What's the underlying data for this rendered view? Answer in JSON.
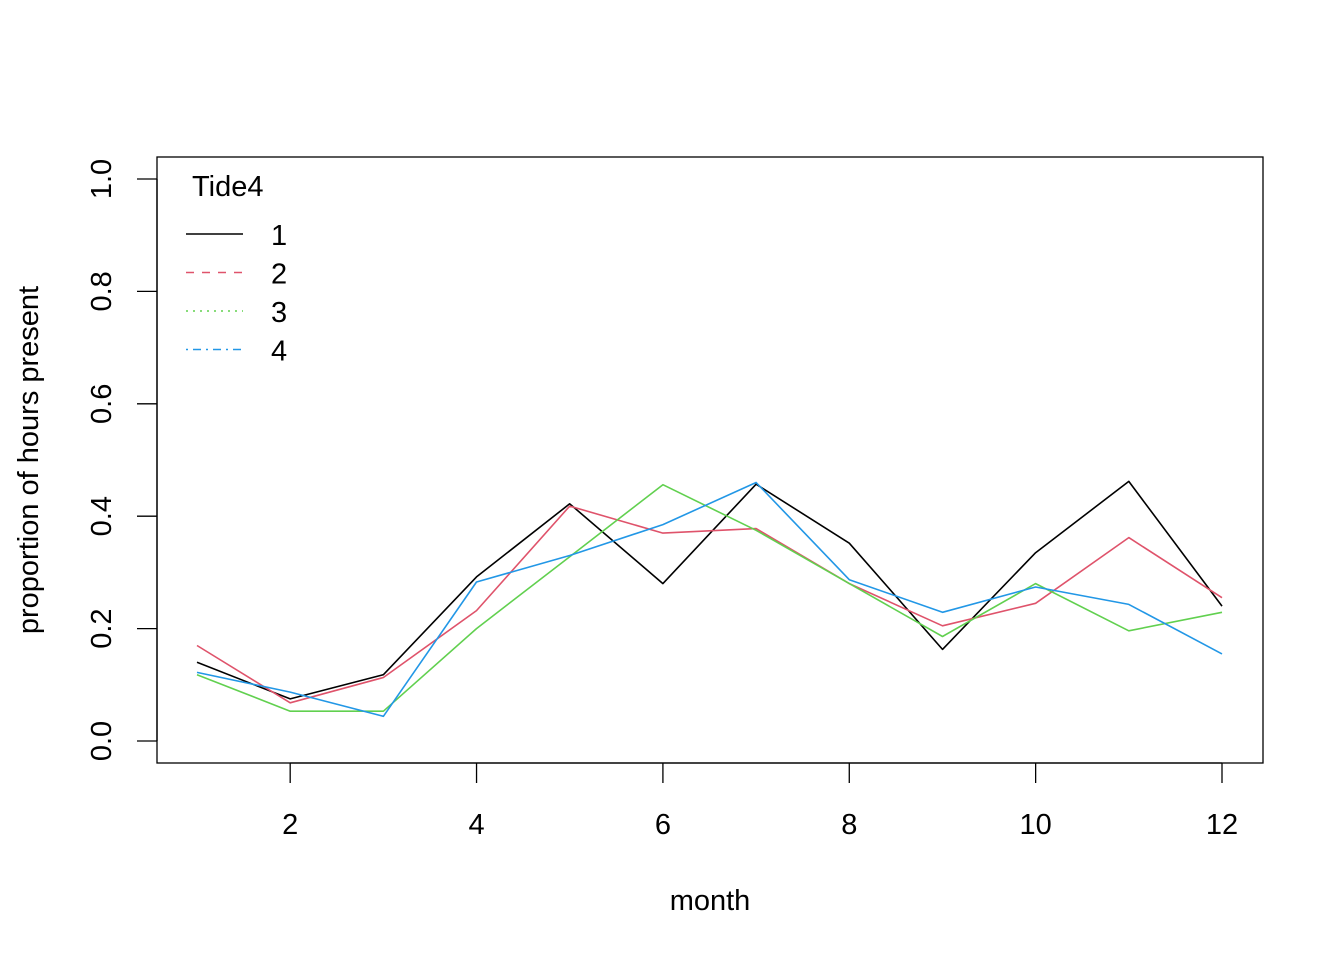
{
  "chart_data": {
    "type": "line",
    "title": "",
    "xlabel": "month",
    "ylabel": "proportion of hours present",
    "xlim": [
      1,
      12
    ],
    "ylim": [
      0,
      1
    ],
    "xticks": [
      2,
      4,
      6,
      8,
      10,
      12
    ],
    "yticks": [
      0.0,
      0.2,
      0.4,
      0.6,
      0.8,
      1.0
    ],
    "ytick_labels": [
      "0.0",
      "0.2",
      "0.4",
      "0.6",
      "0.8",
      "1.0"
    ],
    "grid": false,
    "legend": {
      "title": "Tide4",
      "position": "top-left"
    },
    "x": [
      1,
      2,
      3,
      4,
      5,
      6,
      7,
      8,
      9,
      10,
      11,
      12
    ],
    "series": [
      {
        "name": "1",
        "color": "#000000",
        "dash": "solid",
        "values": [
          0.14,
          0.075,
          0.118,
          0.292,
          0.422,
          0.28,
          0.457,
          0.352,
          0.163,
          0.335,
          0.462,
          0.24
        ]
      },
      {
        "name": "2",
        "color": "#DF536B",
        "dash": "dashed",
        "values": [
          0.17,
          0.068,
          0.113,
          0.232,
          0.418,
          0.37,
          0.378,
          0.28,
          0.205,
          0.245,
          0.362,
          0.255
        ]
      },
      {
        "name": "3",
        "color": "#61D04F",
        "dash": "dotted",
        "values": [
          0.118,
          0.053,
          0.053,
          0.2,
          0.328,
          0.456,
          0.375,
          0.28,
          0.186,
          0.28,
          0.196,
          0.229
        ]
      },
      {
        "name": "4",
        "color": "#2297E6",
        "dash": "dotdash",
        "values": [
          0.122,
          0.087,
          0.044,
          0.283,
          0.33,
          0.385,
          0.46,
          0.287,
          0.229,
          0.274,
          0.243,
          0.155
        ]
      }
    ]
  }
}
